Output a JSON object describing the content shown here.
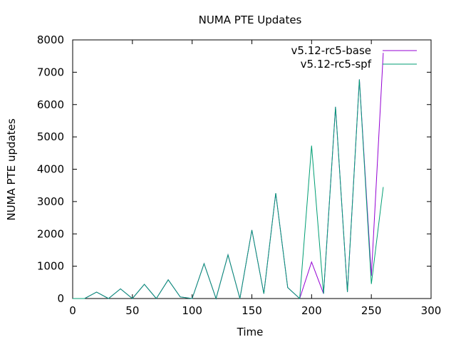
{
  "chart_data": {
    "type": "line",
    "title": "NUMA PTE Updates",
    "xlabel": "Time",
    "ylabel": "NUMA PTE updates",
    "xlim": [
      0,
      300
    ],
    "ylim": [
      0,
      8000
    ],
    "xticks": [
      0,
      50,
      100,
      150,
      200,
      250,
      300
    ],
    "yticks": [
      0,
      1000,
      2000,
      3000,
      4000,
      5000,
      6000,
      7000,
      8000
    ],
    "legend_position": "top-right",
    "series": [
      {
        "name": "v5.12-rc5-base",
        "color": "#9400d3",
        "x": [
          0,
          10,
          20,
          30,
          40,
          50,
          60,
          70,
          80,
          90,
          100,
          110,
          120,
          130,
          140,
          150,
          160,
          170,
          180,
          190,
          200,
          210,
          220,
          230,
          240,
          250,
          260
        ],
        "y": [
          0,
          0,
          200,
          0,
          300,
          0,
          440,
          0,
          580,
          50,
          0,
          1080,
          0,
          1350,
          0,
          2120,
          150,
          3260,
          340,
          0,
          1130,
          150,
          5930,
          200,
          6780,
          700,
          7600
        ]
      },
      {
        "name": "v5.12-rc5-spf",
        "color": "#009e73",
        "x": [
          0,
          10,
          20,
          30,
          40,
          50,
          60,
          70,
          80,
          90,
          100,
          110,
          120,
          130,
          140,
          150,
          160,
          170,
          180,
          190,
          200,
          210,
          220,
          230,
          240,
          250,
          260
        ],
        "y": [
          0,
          0,
          200,
          0,
          300,
          0,
          440,
          0,
          580,
          50,
          0,
          1080,
          0,
          1350,
          0,
          2120,
          150,
          3260,
          340,
          0,
          4730,
          150,
          5930,
          200,
          6780,
          450,
          3450
        ]
      }
    ]
  }
}
